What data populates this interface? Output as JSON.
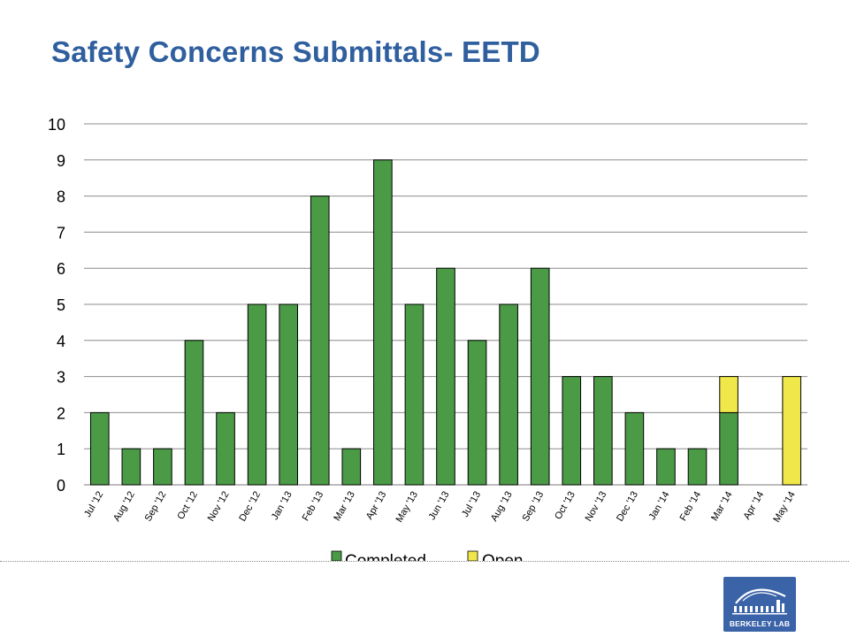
{
  "slide": {
    "title": "Safety Concerns Submittals- EETD",
    "logo_text": "BERKELEY LAB"
  },
  "colors": {
    "completed": "#4a9a46",
    "open": "#f0e84a",
    "gridline": "#8c8c8c",
    "title": "#2f5f9e",
    "logo_bg": "#3b63a8"
  },
  "chart_data": {
    "type": "bar",
    "stacked": true,
    "title": "",
    "xlabel": "",
    "ylabel": "",
    "ylim": [
      0,
      10
    ],
    "yticks": [
      0,
      1,
      2,
      3,
      4,
      5,
      6,
      7,
      8,
      9,
      10
    ],
    "grid": true,
    "legend_position": "bottom",
    "categories": [
      "Jul '12",
      "Aug '12",
      "Sep '12",
      "Oct '12",
      "Nov '12",
      "Dec '12",
      "Jan '13",
      "Feb '13",
      "Mar '13",
      "Apr '13",
      "May '13",
      "Jun '13",
      "Jul '13",
      "Aug '13",
      "Sep '13",
      "Oct '13",
      "Nov '13",
      "Dec '13",
      "Jan '14",
      "Feb '14",
      "Mar '14",
      "Apr '14",
      "May '14"
    ],
    "series": [
      {
        "name": "Completed",
        "color": "#4a9a46",
        "values": [
          2,
          1,
          1,
          4,
          2,
          5,
          5,
          8,
          1,
          9,
          5,
          6,
          4,
          5,
          6,
          3,
          3,
          2,
          1,
          1,
          2,
          0,
          0
        ]
      },
      {
        "name": "Open",
        "color": "#f0e84a",
        "values": [
          0,
          0,
          0,
          0,
          0,
          0,
          0,
          0,
          0,
          0,
          0,
          0,
          0,
          0,
          0,
          0,
          0,
          0,
          0,
          0,
          1,
          0,
          3
        ]
      }
    ]
  }
}
